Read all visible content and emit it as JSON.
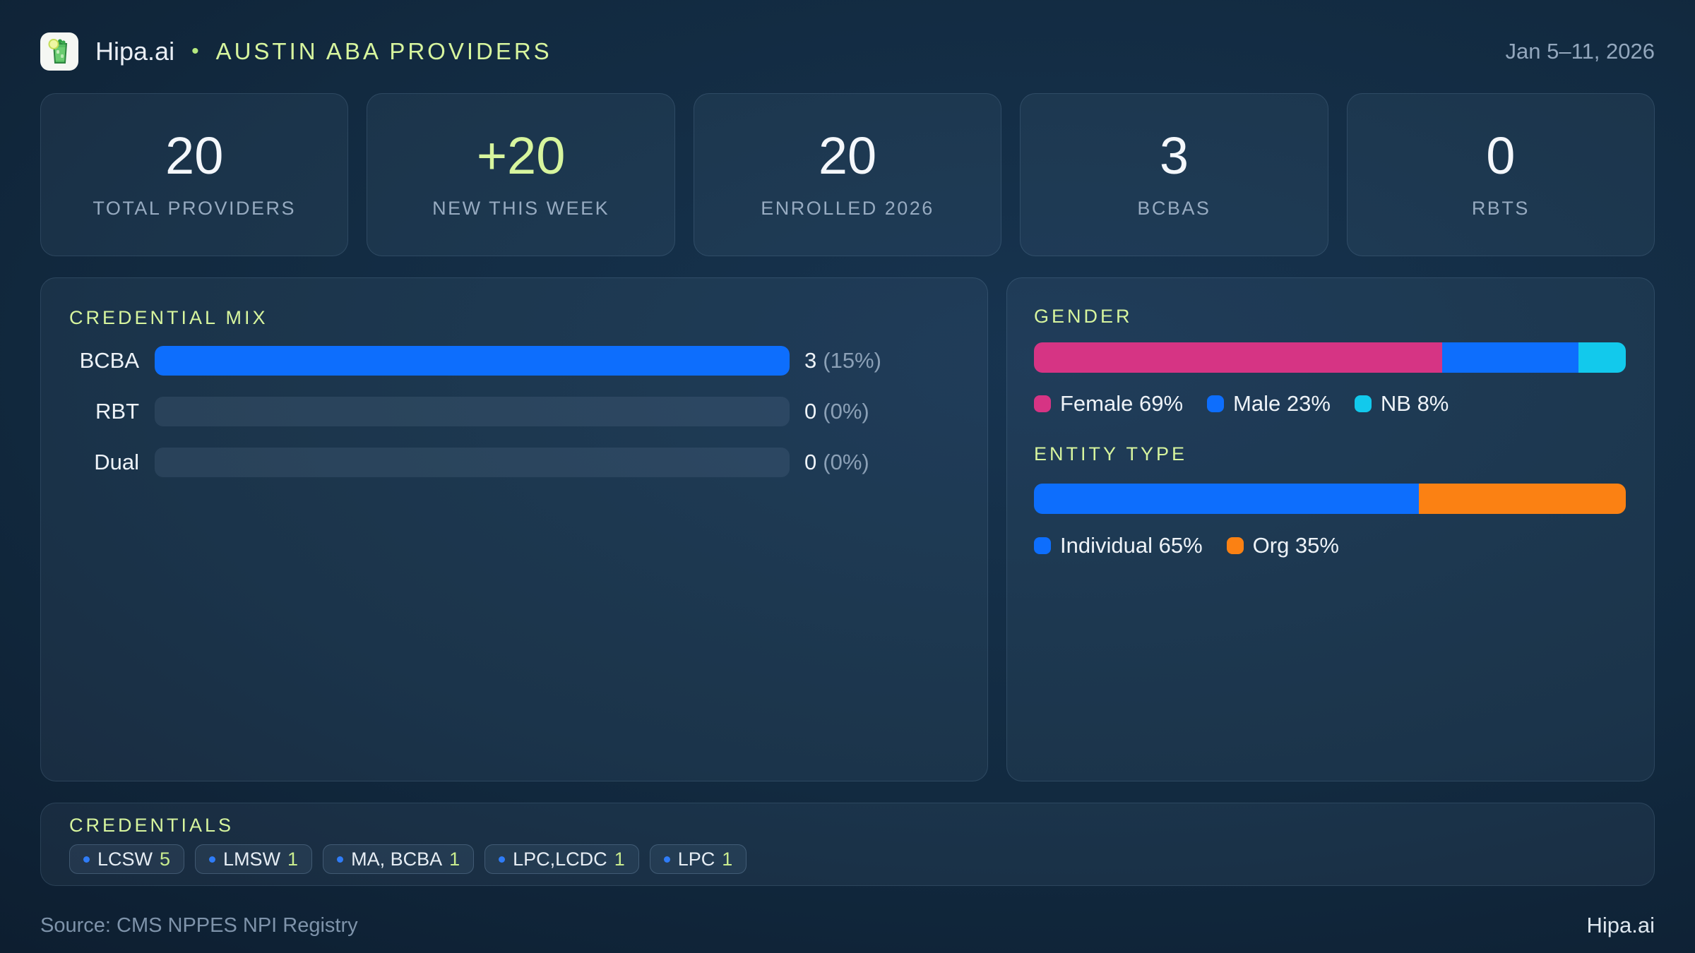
{
  "theme": {
    "accent_green": "#d7f59e",
    "blue": "#0d6efd",
    "pink": "#d63484",
    "cyan": "#12c9ec",
    "orange": "#fb8113",
    "text_primary": "#eef3f8",
    "text_muted": "#8ba0b6"
  },
  "header": {
    "logo_icon": "mojito-glass-icon",
    "brand": "Hipa.ai",
    "separator": "•",
    "title": "AUSTIN ABA PROVIDERS",
    "date_range": "Jan 5–11, 2026"
  },
  "stats": [
    {
      "value": "20",
      "label": "TOTAL PROVIDERS",
      "accent": false
    },
    {
      "value": "+20",
      "label": "NEW THIS WEEK",
      "accent": true
    },
    {
      "value": "20",
      "label": "ENROLLED 2026",
      "accent": false
    },
    {
      "value": "3",
      "label": "BCBAS",
      "accent": false
    },
    {
      "value": "0",
      "label": "RBTS",
      "accent": false
    }
  ],
  "credential_mix": {
    "title": "CREDENTIAL MIX",
    "bar_color": "#0d6efd",
    "rows": [
      {
        "label": "BCBA",
        "count": "3",
        "pct": "(15%)",
        "fill_pct": 100
      },
      {
        "label": "RBT",
        "count": "0",
        "pct": "(0%)",
        "fill_pct": 0
      },
      {
        "label": "Dual",
        "count": "0",
        "pct": "(0%)",
        "fill_pct": 0
      }
    ]
  },
  "gender": {
    "title": "GENDER",
    "segments": [
      {
        "label": "Female",
        "pct": 69,
        "color": "#d63484",
        "legend": "Female 69%"
      },
      {
        "label": "Male",
        "pct": 23,
        "color": "#0d6efd",
        "legend": "Male 23%"
      },
      {
        "label": "NB",
        "pct": 8,
        "color": "#12c9ec",
        "legend": "NB 8%"
      }
    ]
  },
  "entity_type": {
    "title": "ENTITY TYPE",
    "segments": [
      {
        "label": "Individual",
        "pct": 65,
        "color": "#0d6efd",
        "legend": "Individual 65%"
      },
      {
        "label": "Org",
        "pct": 35,
        "color": "#fb8113",
        "legend": "Org 35%"
      }
    ]
  },
  "credentials": {
    "title": "CREDENTIALS",
    "chips": [
      {
        "label": "LCSW",
        "count": "5"
      },
      {
        "label": "LMSW",
        "count": "1"
      },
      {
        "label": "MA, BCBA",
        "count": "1"
      },
      {
        "label": "LPC,LCDC",
        "count": "1"
      },
      {
        "label": "LPC",
        "count": "1"
      }
    ]
  },
  "footer": {
    "source": "Source: CMS NPPES NPI Registry",
    "brand": "Hipa.ai"
  },
  "chart_data": [
    {
      "type": "bar",
      "orientation": "horizontal",
      "title": "CREDENTIAL MIX",
      "categories": [
        "BCBA",
        "RBT",
        "Dual"
      ],
      "values": [
        3,
        0,
        0
      ],
      "value_labels": [
        "3 (15%)",
        "0 (0%)",
        "0 (0%)"
      ],
      "note": "bars normalized to max category; BCBA (3) renders full track width"
    },
    {
      "type": "bar",
      "subtype": "stacked-100pct",
      "title": "GENDER",
      "series": [
        {
          "name": "Female",
          "value": 69
        },
        {
          "name": "Male",
          "value": 23
        },
        {
          "name": "NB",
          "value": 8
        }
      ],
      "unit": "%",
      "legend_position": "bottom"
    },
    {
      "type": "bar",
      "subtype": "stacked-100pct",
      "title": "ENTITY TYPE",
      "series": [
        {
          "name": "Individual",
          "value": 65
        },
        {
          "name": "Org",
          "value": 35
        }
      ],
      "unit": "%",
      "legend_position": "bottom"
    },
    {
      "type": "table",
      "title": "CREDENTIALS",
      "categories": [
        "LCSW",
        "LMSW",
        "MA, BCBA",
        "LPC,LCDC",
        "LPC"
      ],
      "values": [
        5,
        1,
        1,
        1,
        1
      ]
    }
  ]
}
